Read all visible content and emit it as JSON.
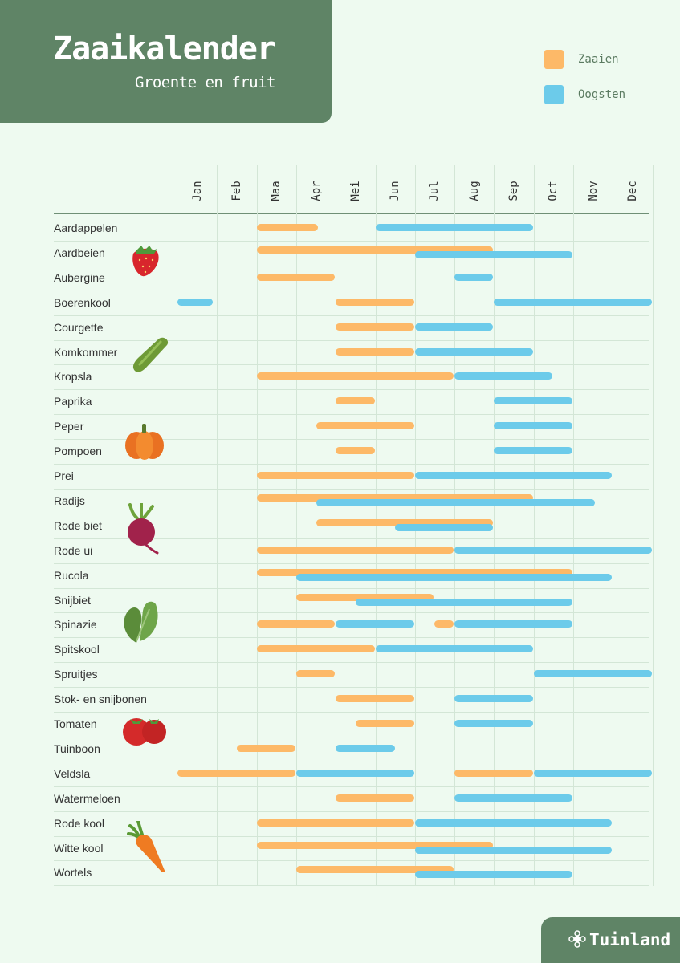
{
  "header": {
    "title": "Zaaikalender",
    "subtitle": "Groente en fruit"
  },
  "legend": {
    "sow_label": "Zaaien",
    "harvest_label": "Oogsten",
    "sow_color": "#fdb968",
    "harvest_color": "#6ccbea"
  },
  "months": [
    "Jan",
    "Feb",
    "Maa",
    "Apr",
    "Mei",
    "Jun",
    "Jul",
    "Aug",
    "Sep",
    "Oct",
    "Nov",
    "Dec"
  ],
  "crops": [
    {
      "name": "Aardappelen",
      "sow": [
        [
          2.0,
          3.55
        ]
      ],
      "harvest": [
        [
          5.0,
          8.98
        ]
      ]
    },
    {
      "name": "Aardbeien",
      "sow": [
        [
          2.0,
          7.98
        ]
      ],
      "harvest": [
        [
          6.0,
          9.98
        ]
      ]
    },
    {
      "name": "Aubergine",
      "sow": [
        [
          2.0,
          3.98
        ]
      ],
      "harvest": [
        [
          7.0,
          7.98
        ]
      ]
    },
    {
      "name": "Boerenkool",
      "sow": [
        [
          4.0,
          5.98
        ]
      ],
      "harvest": [
        [
          0.0,
          0.9
        ],
        [
          8.0,
          11.98
        ]
      ]
    },
    {
      "name": "Courgette",
      "sow": [
        [
          4.0,
          5.98
        ]
      ],
      "harvest": [
        [
          6.0,
          7.98
        ]
      ]
    },
    {
      "name": "Komkommer",
      "sow": [
        [
          4.0,
          5.98
        ]
      ],
      "harvest": [
        [
          6.0,
          8.98
        ]
      ]
    },
    {
      "name": "Kropsla",
      "sow": [
        [
          2.0,
          6.98
        ]
      ],
      "harvest": [
        [
          7.0,
          9.48
        ]
      ]
    },
    {
      "name": "Paprika",
      "sow": [
        [
          4.0,
          4.98
        ]
      ],
      "harvest": [
        [
          8.0,
          9.98
        ]
      ]
    },
    {
      "name": "Peper",
      "sow": [
        [
          3.5,
          5.98
        ]
      ],
      "harvest": [
        [
          8.0,
          9.98
        ]
      ]
    },
    {
      "name": "Pompoen",
      "sow": [
        [
          4.0,
          4.98
        ]
      ],
      "harvest": [
        [
          8.0,
          9.98
        ]
      ]
    },
    {
      "name": "Prei",
      "sow": [
        [
          2.0,
          5.98
        ]
      ],
      "harvest": [
        [
          6.0,
          10.98
        ]
      ]
    },
    {
      "name": "Radijs",
      "sow": [
        [
          2.0,
          8.98
        ]
      ],
      "harvest": [
        [
          3.5,
          10.55
        ]
      ]
    },
    {
      "name": "Rode biet",
      "sow": [
        [
          3.5,
          7.98
        ]
      ],
      "harvest": [
        [
          5.5,
          7.98
        ]
      ]
    },
    {
      "name": "Rode ui",
      "sow": [
        [
          2.0,
          6.98
        ]
      ],
      "harvest": [
        [
          7.0,
          11.98
        ]
      ]
    },
    {
      "name": "Rucola",
      "sow": [
        [
          2.0,
          9.98
        ]
      ],
      "harvest": [
        [
          3.0,
          10.98
        ]
      ]
    },
    {
      "name": "Snijbiet",
      "sow": [
        [
          3.0,
          6.48
        ]
      ],
      "harvest": [
        [
          4.5,
          9.98
        ]
      ]
    },
    {
      "name": "Spinazie",
      "sow": [
        [
          2.0,
          3.98
        ],
        [
          6.5,
          6.98
        ]
      ],
      "harvest": [
        [
          4.0,
          5.98
        ],
        [
          7.0,
          9.98
        ]
      ]
    },
    {
      "name": "Spitskool",
      "sow": [
        [
          2.0,
          4.98
        ]
      ],
      "harvest": [
        [
          5.0,
          8.98
        ]
      ]
    },
    {
      "name": "Spruitjes",
      "sow": [
        [
          3.0,
          3.98
        ]
      ],
      "harvest": [
        [
          9.0,
          11.98
        ]
      ]
    },
    {
      "name": "Stok- en snijbonen",
      "sow": [
        [
          4.0,
          5.98
        ]
      ],
      "harvest": [
        [
          7.0,
          8.98
        ]
      ]
    },
    {
      "name": "Tomaten",
      "sow": [
        [
          4.5,
          5.98
        ]
      ],
      "harvest": [
        [
          7.0,
          8.98
        ]
      ]
    },
    {
      "name": "Tuinboon",
      "sow": [
        [
          1.5,
          2.98
        ]
      ],
      "harvest": [
        [
          4.0,
          5.5
        ]
      ]
    },
    {
      "name": "Veldsla",
      "sow": [
        [
          0.0,
          2.98
        ],
        [
          7.0,
          8.98
        ]
      ],
      "harvest": [
        [
          3.0,
          5.98
        ],
        [
          9.0,
          11.98
        ]
      ]
    },
    {
      "name": "Watermeloen",
      "sow": [
        [
          4.0,
          5.98
        ]
      ],
      "harvest": [
        [
          7.0,
          9.98
        ]
      ]
    },
    {
      "name": "Rode kool",
      "sow": [
        [
          2.0,
          5.98
        ]
      ],
      "harvest": [
        [
          6.0,
          10.98
        ]
      ]
    },
    {
      "name": "Witte kool",
      "sow": [
        [
          2.0,
          7.98
        ]
      ],
      "harvest": [
        [
          6.0,
          10.98
        ]
      ]
    },
    {
      "name": "Wortels",
      "sow": [
        [
          3.0,
          6.98
        ]
      ],
      "harvest": [
        [
          6.0,
          9.98
        ]
      ]
    }
  ],
  "illustrations": [
    "strawberry-icon",
    "cucumber-icon",
    "pumpkin-icon",
    "beetroot-icon",
    "spinach-icon",
    "tomato-icon",
    "carrot-icon"
  ],
  "footer": {
    "brand": "Tuinland"
  }
}
